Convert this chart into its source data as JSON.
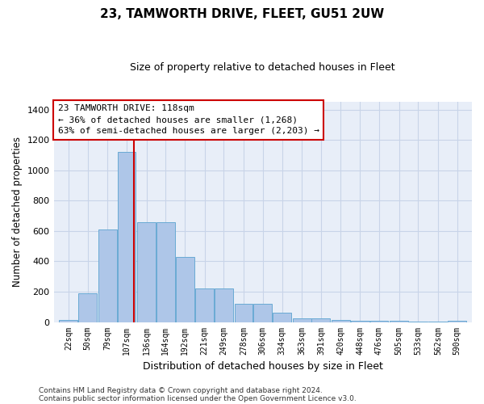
{
  "title": "23, TAMWORTH DRIVE, FLEET, GU51 2UW",
  "subtitle": "Size of property relative to detached houses in Fleet",
  "xlabel": "Distribution of detached houses by size in Fleet",
  "ylabel": "Number of detached properties",
  "footer_line1": "Contains HM Land Registry data © Crown copyright and database right 2024.",
  "footer_line2": "Contains public sector information licensed under the Open Government Licence v3.0.",
  "annotation_line1": "23 TAMWORTH DRIVE: 118sqm",
  "annotation_line2": "← 36% of detached houses are smaller (1,268)",
  "annotation_line3": "63% of semi-detached houses are larger (2,203) →",
  "property_size": 118,
  "bar_color": "#aec6e8",
  "bar_edge_color": "#6aaad4",
  "redline_color": "#cc0000",
  "annotation_box_color": "#cc0000",
  "grid_color": "#c8d4e8",
  "background_color": "#e8eef8",
  "ylim": [
    0,
    1450
  ],
  "yticks": [
    0,
    200,
    400,
    600,
    800,
    1000,
    1200,
    1400
  ],
  "bins": [
    22,
    50,
    79,
    107,
    136,
    164,
    192,
    221,
    249,
    278,
    306,
    334,
    363,
    391,
    420,
    448,
    476,
    505,
    533,
    562,
    590
  ],
  "heights": [
    15,
    190,
    610,
    1120,
    660,
    660,
    430,
    220,
    220,
    120,
    120,
    60,
    25,
    25,
    15,
    10,
    10,
    10,
    5,
    5,
    10
  ],
  "bin_labels": [
    "22sqm",
    "50sqm",
    "79sqm",
    "107sqm",
    "136sqm",
    "164sqm",
    "192sqm",
    "221sqm",
    "249sqm",
    "278sqm",
    "306sqm",
    "334sqm",
    "363sqm",
    "391sqm",
    "420sqm",
    "448sqm",
    "476sqm",
    "505sqm",
    "533sqm",
    "562sqm",
    "590sqm"
  ]
}
